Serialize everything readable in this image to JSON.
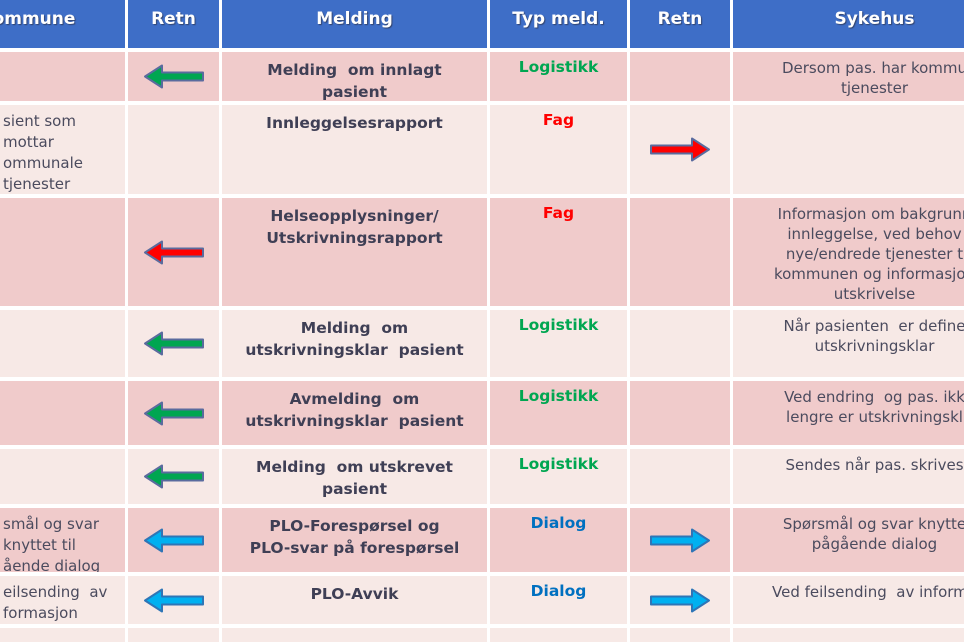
{
  "table": {
    "columns": [
      {
        "label": "ommune"
      },
      {
        "label": "Retn"
      },
      {
        "label": "Melding"
      },
      {
        "label": "Typ meld."
      },
      {
        "label": "Retn"
      },
      {
        "label": "Sykehus"
      }
    ],
    "rows": [
      {
        "shade": "dark",
        "kommune": "",
        "arrow_to_kommune": "green",
        "melding": "Melding  om innlagt\npasient",
        "typ": "Logistikk",
        "typ_color": "green",
        "arrow_to_sykehus": null,
        "sykehus": "Dersom pas. har kommu\ntjenester"
      },
      {
        "shade": "light",
        "kommune": "sient som\nmottar\nommunale\ntjenester",
        "arrow_to_kommune": null,
        "melding": "Innleggelsesrapport",
        "typ": "Fag",
        "typ_color": "red",
        "arrow_to_sykehus": "red",
        "sykehus": ""
      },
      {
        "shade": "dark",
        "kommune": "",
        "arrow_to_kommune": "red",
        "melding": "Helseopplysninger/\nUtskrivningsrapport",
        "typ": "Fag",
        "typ_color": "red",
        "arrow_to_sykehus": null,
        "sykehus": "Informasjon om bakgrunn\ninnleggelse, ved behov\nnye/endrede tjenester t\nkommunen og informasjon\nutskrivelse"
      },
      {
        "shade": "light",
        "kommune": "",
        "arrow_to_kommune": "green",
        "melding": "Melding  om\nutskrivningsklar  pasient",
        "typ": "Logistikk",
        "typ_color": "green",
        "arrow_to_sykehus": null,
        "sykehus": "Når pasienten  er define\nutskrivningsklar"
      },
      {
        "shade": "dark",
        "kommune": "",
        "arrow_to_kommune": "green",
        "melding": "Avmelding  om\nutskrivningsklar  pasient",
        "typ": "Logistikk",
        "typ_color": "green",
        "arrow_to_sykehus": null,
        "sykehus": "Ved endring  og pas. ikk\nlengre er utskrivningskl"
      },
      {
        "shade": "light",
        "kommune": "",
        "arrow_to_kommune": "green",
        "melding": "Melding  om utskrevet\npasient",
        "typ": "Logistikk",
        "typ_color": "green",
        "arrow_to_sykehus": null,
        "sykehus": "Sendes når pas. skrives"
      },
      {
        "shade": "dark",
        "kommune": "smål og svar\nknyttet til\nående dialog",
        "arrow_to_kommune": "blue",
        "melding": "PLO-Forespørsel og\nPLO-svar på forespørsel",
        "typ": "Dialog",
        "typ_color": "blue",
        "arrow_to_sykehus": "blue",
        "sykehus": "Spørsmål og svar knytte\npågående dialog"
      },
      {
        "shade": "light",
        "kommune": "eilsending  av\nformasjon",
        "arrow_to_kommune": "blue",
        "melding": "PLO-Avvik",
        "typ": "Dialog",
        "typ_color": "blue",
        "arrow_to_sykehus": "blue",
        "sykehus": "Ved feilsending  av informa"
      },
      {
        "shade": "light",
        "kommune": "",
        "arrow_to_kommune": null,
        "melding": "",
        "typ": "",
        "typ_color": null,
        "arrow_to_sykehus": null,
        "sykehus": ""
      }
    ]
  },
  "colors": {
    "header_bg": "#3E6EC7",
    "row_dark": "#F0CBCB",
    "row_light": "#F7E9E6",
    "grid_line": "#FFFFFF",
    "body_text": "#4B4B5E",
    "melding_text": "#3F3F55",
    "typ_text": {
      "green": "#00A651",
      "red": "#FF0000",
      "blue": "#0070C0"
    },
    "arrows": {
      "green": {
        "fill": "#00A651",
        "stroke": "#5A6B9E"
      },
      "red": {
        "fill": "#FF0000",
        "stroke": "#5A6B9E"
      },
      "blue": {
        "fill": "#00B0F0",
        "stroke": "#2E75B6"
      }
    }
  }
}
